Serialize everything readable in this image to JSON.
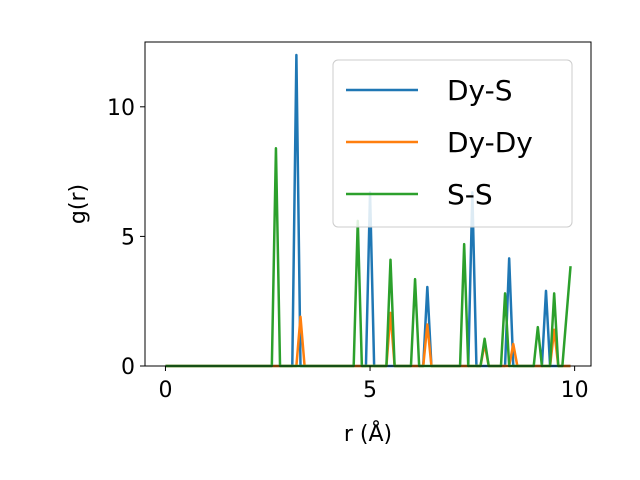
{
  "chart_data": {
    "type": "line",
    "xlabel": "r (Å)",
    "ylabel": "g(r)",
    "xlim": [
      -0.5,
      10.4
    ],
    "ylim": [
      0,
      12.5
    ],
    "x_ticks": [
      0,
      5,
      10
    ],
    "y_ticks": [
      0,
      5,
      10
    ],
    "grid": false,
    "legend_position": "top-right",
    "series": [
      {
        "name": "Dy-S",
        "color": "#1f77b4",
        "points": [
          [
            0,
            0
          ],
          [
            3.1,
            0
          ],
          [
            3.2,
            12.0
          ],
          [
            3.3,
            0
          ],
          [
            4.9,
            0
          ],
          [
            5.0,
            6.7
          ],
          [
            5.1,
            0
          ],
          [
            6.3,
            0
          ],
          [
            6.4,
            3.05
          ],
          [
            6.5,
            0
          ],
          [
            7.4,
            0
          ],
          [
            7.5,
            6.7
          ],
          [
            7.6,
            0
          ],
          [
            8.3,
            0
          ],
          [
            8.4,
            4.15
          ],
          [
            8.5,
            0
          ],
          [
            9.2,
            0
          ],
          [
            9.3,
            2.9
          ],
          [
            9.4,
            0
          ],
          [
            9.9,
            0
          ]
        ]
      },
      {
        "name": "Dy-Dy",
        "color": "#ff7f0e",
        "points": [
          [
            0,
            0
          ],
          [
            3.2,
            0
          ],
          [
            3.3,
            1.9
          ],
          [
            3.4,
            0
          ],
          [
            5.4,
            0
          ],
          [
            5.5,
            2.05
          ],
          [
            5.6,
            0
          ],
          [
            6.3,
            0
          ],
          [
            6.4,
            1.6
          ],
          [
            6.5,
            0
          ],
          [
            7.7,
            0
          ],
          [
            7.8,
            0.85
          ],
          [
            7.9,
            0
          ],
          [
            8.4,
            0
          ],
          [
            8.5,
            0.85
          ],
          [
            8.6,
            0
          ],
          [
            9.4,
            0
          ],
          [
            9.5,
            1.4
          ],
          [
            9.6,
            0
          ],
          [
            9.9,
            0
          ]
        ]
      },
      {
        "name": "S-S",
        "color": "#2ca02c",
        "points": [
          [
            0,
            0
          ],
          [
            2.6,
            0
          ],
          [
            2.7,
            8.4
          ],
          [
            2.8,
            0
          ],
          [
            4.6,
            0
          ],
          [
            4.7,
            5.6
          ],
          [
            4.8,
            0
          ],
          [
            5.4,
            0
          ],
          [
            5.5,
            4.1
          ],
          [
            5.6,
            0
          ],
          [
            6.0,
            0
          ],
          [
            6.1,
            3.35
          ],
          [
            6.2,
            0
          ],
          [
            7.2,
            0
          ],
          [
            7.3,
            4.7
          ],
          [
            7.4,
            0
          ],
          [
            7.7,
            0
          ],
          [
            7.8,
            1.05
          ],
          [
            7.9,
            0
          ],
          [
            8.2,
            0
          ],
          [
            8.3,
            2.8
          ],
          [
            8.4,
            0
          ],
          [
            9.0,
            0
          ],
          [
            9.1,
            1.5
          ],
          [
            9.2,
            0
          ],
          [
            9.4,
            0
          ],
          [
            9.5,
            2.8
          ],
          [
            9.6,
            0
          ],
          [
            9.7,
            0
          ],
          [
            9.9,
            3.85
          ]
        ]
      }
    ]
  }
}
